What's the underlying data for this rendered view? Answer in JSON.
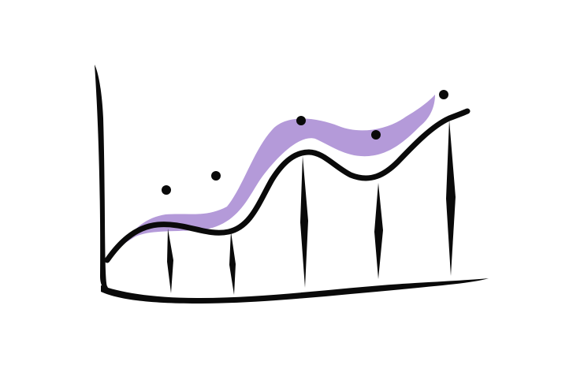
{
  "illustration": {
    "subject": "hand-drawn-line-chart-icon",
    "colors": {
      "ink": "#0a0a0a",
      "band": "#b49ad9",
      "background": "#ffffff"
    },
    "marker_count": 5,
    "spike_count": 5
  }
}
